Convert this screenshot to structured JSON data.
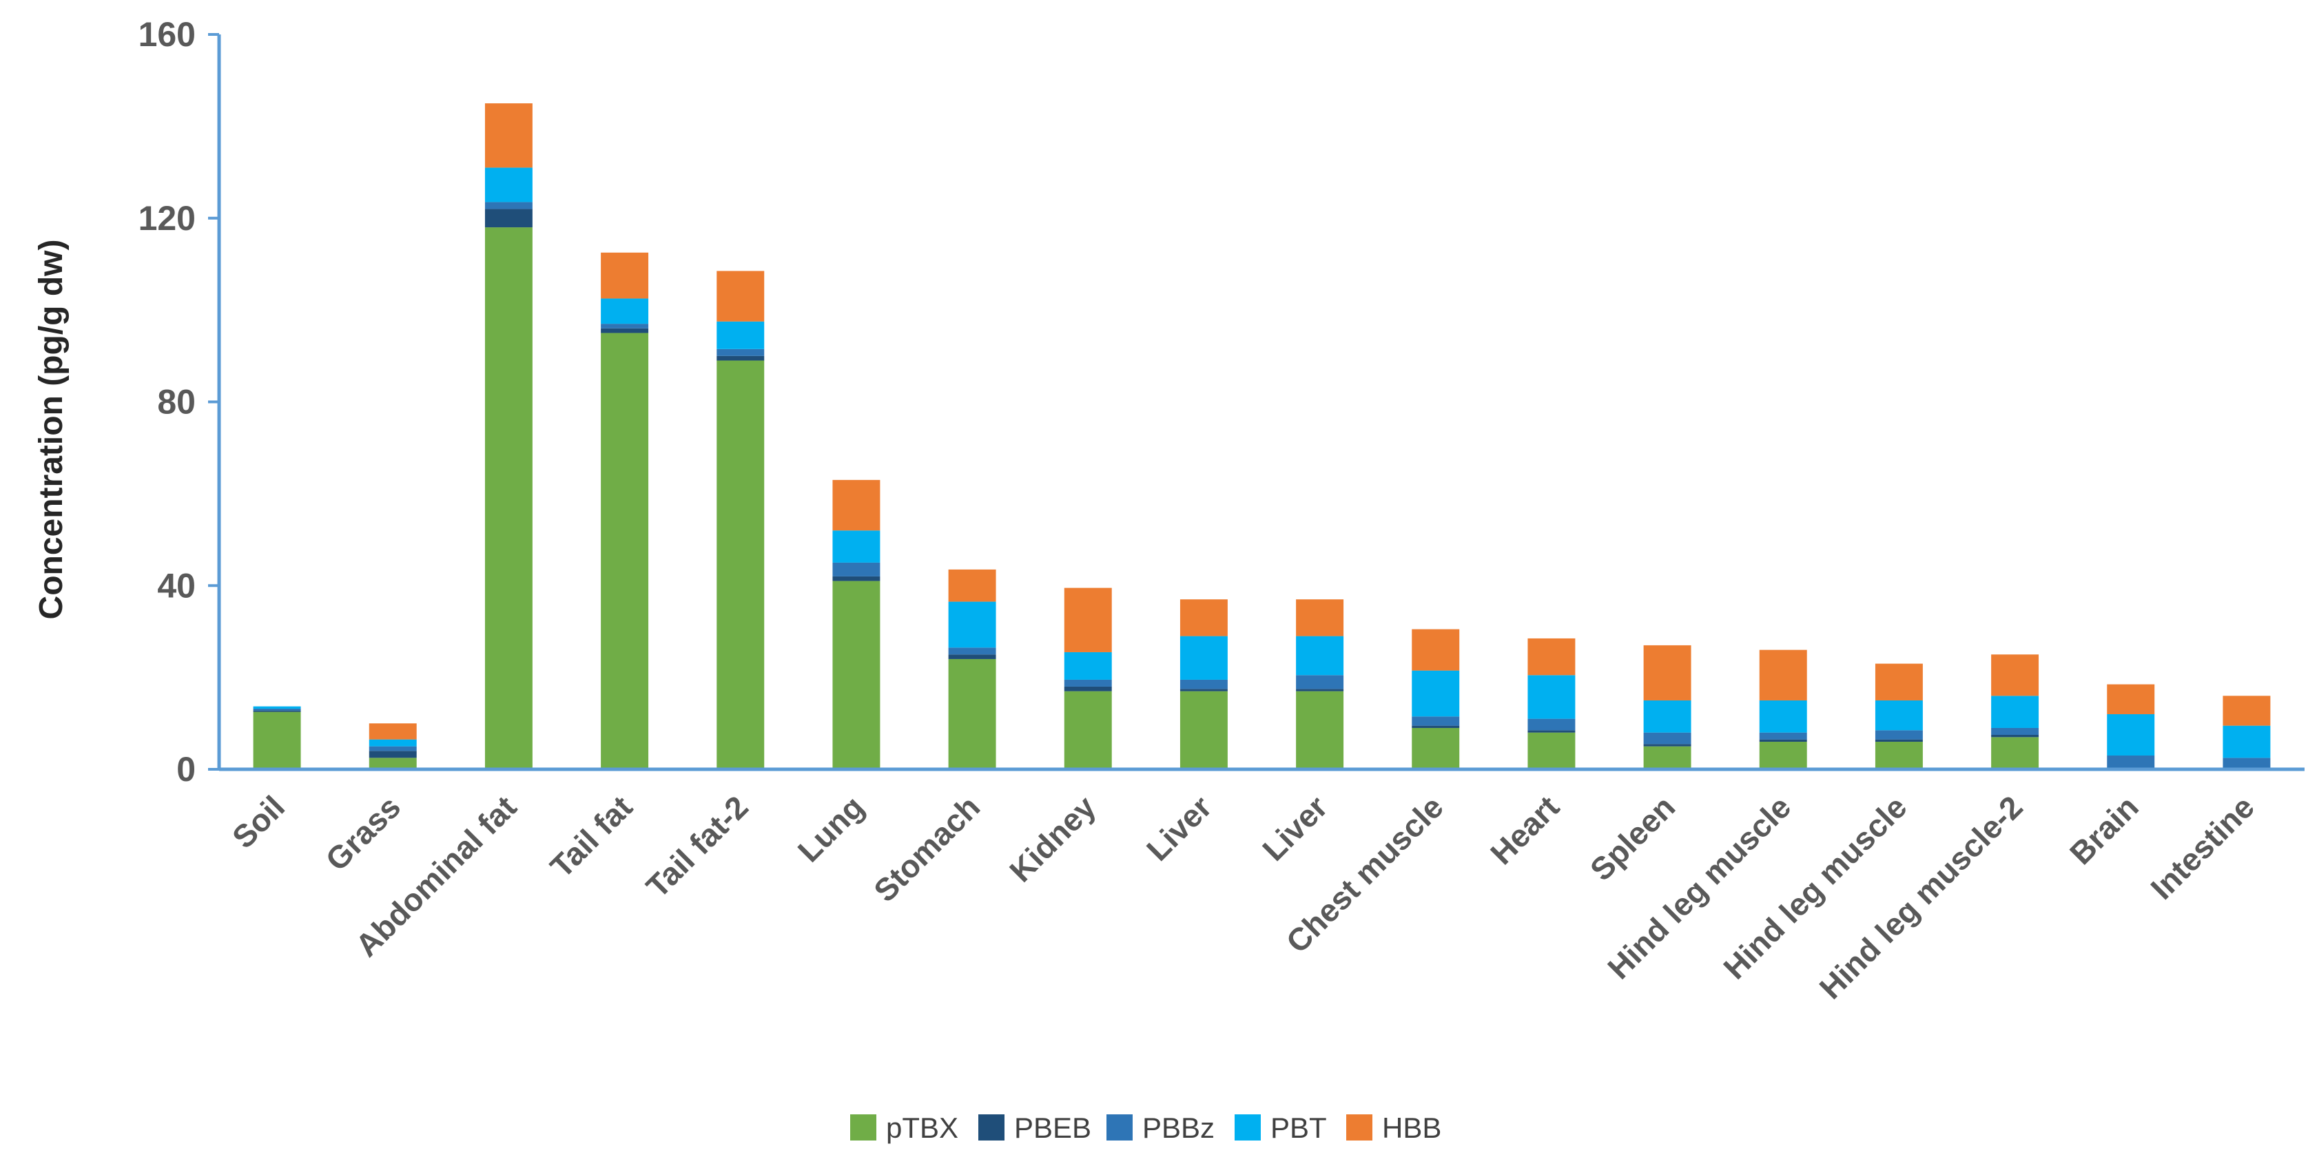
{
  "chart_data": {
    "type": "bar",
    "stacked": true,
    "title": "",
    "xlabel": "",
    "ylabel": "Concentration (pg/g dw)",
    "ylim": [
      0,
      160
    ],
    "yticks": [
      "0",
      "40",
      "80",
      "120",
      "160"
    ],
    "grid": false,
    "legend_position": "bottom",
    "categories": [
      "Soil",
      "Grass",
      "Abdominal fat",
      "Tail fat",
      "Tail fat-2",
      "Lung",
      "Stomach",
      "Kidney",
      "Liver",
      "Liver",
      "Chest muscle",
      "Heart",
      "Spleen",
      "Hind leg muscle",
      "Hind leg muscle",
      "Hind leg muscle-2",
      "Brain",
      "Intestine"
    ],
    "series": [
      {
        "name": "pTBX",
        "color": "#70AD47",
        "values": [
          12.5,
          2.5,
          118,
          95,
          89,
          41,
          24,
          17,
          17,
          17,
          9,
          8,
          5,
          6,
          6,
          7,
          0,
          0
        ]
      },
      {
        "name": "PBEB",
        "color": "#1F4E79",
        "values": [
          0.3,
          1.5,
          4,
          1,
          1,
          1,
          1,
          1,
          0.5,
          0.5,
          0.5,
          0.5,
          0.5,
          0.5,
          0.5,
          0.5,
          0,
          0
        ]
      },
      {
        "name": "PBBz",
        "color": "#2E75B6",
        "values": [
          0.4,
          1,
          1.5,
          1,
          1.5,
          3,
          1.5,
          1.5,
          2,
          3,
          2,
          2.5,
          2.5,
          1.5,
          2,
          1.5,
          3,
          2.5
        ]
      },
      {
        "name": "PBT",
        "color": "#00B0F0",
        "values": [
          0.5,
          1.5,
          7.5,
          5.5,
          6,
          7,
          10,
          6,
          9.5,
          8.5,
          10,
          9.5,
          7,
          7,
          6.5,
          7,
          9,
          7
        ]
      },
      {
        "name": "HBB",
        "color": "#ED7D31",
        "values": [
          0,
          3.5,
          14,
          10,
          11,
          11,
          7,
          14,
          8,
          8,
          9,
          8,
          12,
          11,
          8,
          9,
          6.5,
          6.5
        ]
      }
    ]
  }
}
